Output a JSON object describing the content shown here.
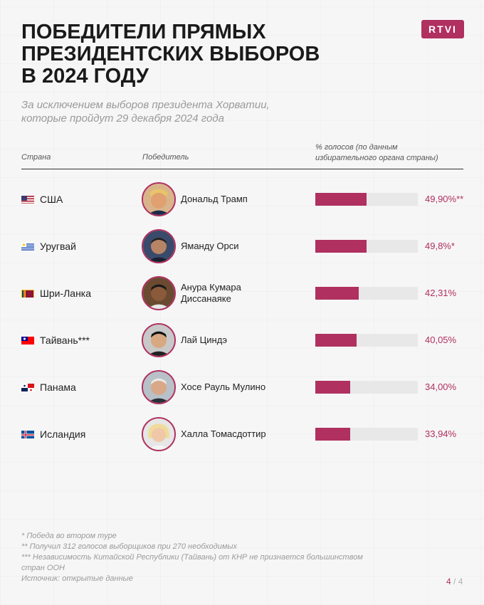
{
  "logo": "RTVI",
  "title_lines": [
    "ПОБЕДИТЕЛИ ПРЯМЫХ",
    "ПРЕЗИДЕНТСКИХ ВЫБОРОВ",
    "В 2024 ГОДУ"
  ],
  "subtitle_lines": [
    "За исключением выборов президента Хорватии,",
    "которые пройдут 29 декабря 2024 года"
  ],
  "colors": {
    "accent": "#b03060",
    "track": "#e8e8e8",
    "note": "#9a9a9a"
  },
  "chart_data": {
    "type": "bar",
    "columns": {
      "country": "Страна",
      "winner": "Победитель",
      "percent_lines": [
        "% голосов (по данным",
        "избирательного органа страны)"
      ]
    },
    "rows": [
      {
        "country": "США",
        "flag": "us-flag",
        "winner_lines": [
          "Дональд Трамп"
        ],
        "value": 49.9,
        "label": "49,90%**"
      },
      {
        "country": "Уругвай",
        "flag": "uruguay-flag",
        "winner_lines": [
          "Яманду Орси"
        ],
        "value": 49.8,
        "label": "49,8%*"
      },
      {
        "country": "Шри-Ланка",
        "flag": "sri-lanka-flag",
        "winner_lines": [
          "Анура Кумара",
          "Диссанаяке"
        ],
        "value": 42.31,
        "label": "42,31%"
      },
      {
        "country": "Тайвань***",
        "flag": "taiwan-flag",
        "winner_lines": [
          "Лай Циндэ"
        ],
        "value": 40.05,
        "label": "40,05%"
      },
      {
        "country": "Панама",
        "flag": "panama-flag",
        "winner_lines": [
          "Хосе Рауль Мулино"
        ],
        "value": 34.0,
        "label": "34,00%"
      },
      {
        "country": "Исландия",
        "flag": "iceland-flag",
        "winner_lines": [
          "Халла Томасдоттир"
        ],
        "value": 33.94,
        "label": "33,94%"
      }
    ],
    "xlim": [
      0,
      100
    ]
  },
  "notes": [
    "* Победа во втором туре",
    "** Получил 312 голосов выборщиков при 270 необходимых",
    "*** Независимость Китайской Республики (Тайвань) от КНР не признается большинством",
    "стран ООН",
    "Источник: открытые данные"
  ],
  "page": {
    "current": "4",
    "separator": "/",
    "total": "4"
  }
}
